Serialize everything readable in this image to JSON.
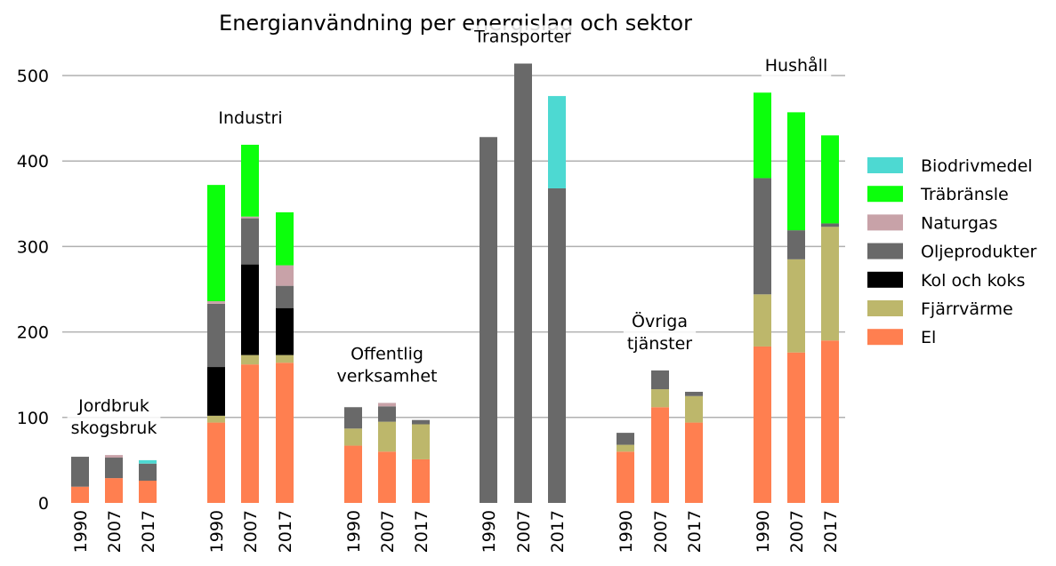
{
  "chart_data": {
    "type": "bar",
    "stacked": true,
    "title": "Energianvändning per energislag och sektor",
    "categories": [
      "1990",
      "2007",
      "2017",
      "1990",
      "2007",
      "2017",
      "1990",
      "2007",
      "2017",
      "1990",
      "2007",
      "2017",
      "1990",
      "2007",
      "2017",
      "1990",
      "2007",
      "2017"
    ],
    "groups": [
      {
        "lines": [
          "Jordbruk",
          "skogsbruk"
        ],
        "start": 0,
        "count": 3
      },
      {
        "lines": [
          "Industri"
        ],
        "start": 3,
        "count": 3
      },
      {
        "lines": [
          "Offentlig",
          "verksamhet"
        ],
        "start": 6,
        "count": 3
      },
      {
        "lines": [
          "Transporter"
        ],
        "start": 9,
        "count": 3
      },
      {
        "lines": [
          "Övriga",
          "tjänster"
        ],
        "start": 12,
        "count": 3
      },
      {
        "lines": [
          "Hushåll"
        ],
        "start": 15,
        "count": 3
      }
    ],
    "series": [
      {
        "name": "El",
        "color": "#ff7f50",
        "values": [
          19,
          29,
          26,
          94,
          162,
          164,
          67,
          60,
          51,
          0,
          0,
          0,
          60,
          112,
          94,
          183,
          176,
          190
        ]
      },
      {
        "name": "Fjärrvärme",
        "color": "#bdb76b",
        "values": [
          0,
          0,
          0,
          8,
          11,
          9,
          20,
          35,
          41,
          0,
          0,
          0,
          8,
          21,
          31,
          61,
          109,
          133
        ]
      },
      {
        "name": "Kol och koks",
        "color": "#000000",
        "values": [
          0,
          0,
          0,
          57,
          106,
          55,
          0,
          0,
          0,
          0,
          0,
          0,
          0,
          0,
          0,
          0,
          0,
          0
        ]
      },
      {
        "name": "Oljeprodukter",
        "color": "#696969",
        "values": [
          35,
          24,
          20,
          74,
          54,
          26,
          25,
          18,
          5,
          428,
          514,
          368,
          14,
          22,
          5,
          136,
          34,
          4
        ]
      },
      {
        "name": "Naturgas",
        "color": "#c8a2a8",
        "values": [
          0,
          3,
          0,
          3,
          2,
          24,
          0,
          4,
          0,
          0,
          0,
          0,
          0,
          0,
          0,
          0,
          0,
          0
        ]
      },
      {
        "name": "Träbränsle",
        "color": "#0cff0c",
        "values": [
          0,
          0,
          0,
          136,
          84,
          62,
          0,
          0,
          0,
          0,
          0,
          0,
          0,
          0,
          0,
          100,
          138,
          103
        ]
      },
      {
        "name": "Biodrivmedel",
        "color": "#4dd9d2",
        "values": [
          0,
          0,
          4,
          0,
          0,
          0,
          0,
          0,
          0,
          0,
          0,
          108,
          0,
          0,
          0,
          0,
          0,
          0
        ]
      }
    ],
    "ylim": [
      0,
      500
    ],
    "yticks": [
      0,
      100,
      200,
      300,
      400,
      500
    ],
    "grid": true
  }
}
